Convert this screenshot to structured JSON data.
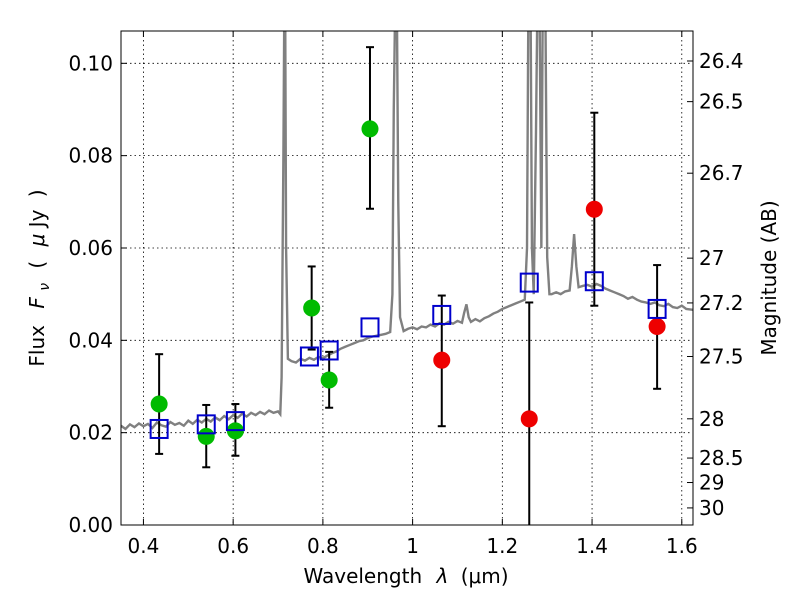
{
  "chart_data": {
    "type": "scatter",
    "title": "",
    "xlabel": "Wavelength  λ (μm)",
    "ylabel": "Flux  F_ν  ( μJy )",
    "ylabel_parts": {
      "prefix": "Flux",
      "symbol": "F",
      "subscript": "ν",
      "open": "(",
      "mu": "μ",
      "unit": "Jy",
      "close": ")"
    },
    "xlabel_parts": {
      "prefix": "Wavelength",
      "symbol": "λ",
      "unit": "(μm)"
    },
    "y2label": "Magnitude (AB)",
    "xlim": [
      0.35,
      1.625
    ],
    "ylim": [
      0.0,
      0.107
    ],
    "grid": true,
    "xticks": [
      0.4,
      0.6,
      0.8,
      1.0,
      1.2,
      1.4,
      1.6
    ],
    "xtick_labels": [
      "0.4",
      "0.6",
      "0.8",
      "1",
      "1.2",
      "1.4",
      "1.6"
    ],
    "yticks": [
      0.0,
      0.02,
      0.04,
      0.06,
      0.08,
      0.1
    ],
    "ytick_labels": [
      "0.00",
      "0.02",
      "0.04",
      "0.06",
      "0.08",
      "0.10"
    ],
    "y2ticks": [
      {
        "label": "26.4",
        "flux": 0.1005
      },
      {
        "label": "26.5",
        "flux": 0.0917
      },
      {
        "label": "26.7",
        "flux": 0.0762
      },
      {
        "label": "27",
        "flux": 0.0578
      },
      {
        "label": "27.2",
        "flux": 0.0481
      },
      {
        "label": "27.5",
        "flux": 0.0365
      },
      {
        "label": "28",
        "flux": 0.023
      },
      {
        "label": "28.5",
        "flux": 0.0145
      },
      {
        "label": "29",
        "flux": 0.0092
      },
      {
        "label": "30",
        "flux": 0.0037
      }
    ],
    "series": [
      {
        "name": "template spectrum",
        "type": "line",
        "color": "#808080",
        "points": [
          [
            0.35,
            0.0215
          ],
          [
            0.36,
            0.0208
          ],
          [
            0.37,
            0.0218
          ],
          [
            0.38,
            0.0212
          ],
          [
            0.39,
            0.022
          ],
          [
            0.4,
            0.0214
          ],
          [
            0.41,
            0.0219
          ],
          [
            0.42,
            0.021
          ],
          [
            0.43,
            0.0222
          ],
          [
            0.44,
            0.0216
          ],
          [
            0.45,
            0.0213
          ],
          [
            0.46,
            0.0223
          ],
          [
            0.47,
            0.0217
          ],
          [
            0.48,
            0.0221
          ],
          [
            0.49,
            0.0215
          ],
          [
            0.5,
            0.0226
          ],
          [
            0.51,
            0.0219
          ],
          [
            0.52,
            0.0228
          ],
          [
            0.53,
            0.0222
          ],
          [
            0.54,
            0.023
          ],
          [
            0.55,
            0.0224
          ],
          [
            0.56,
            0.0233
          ],
          [
            0.57,
            0.0227
          ],
          [
            0.58,
            0.0236
          ],
          [
            0.59,
            0.0229
          ],
          [
            0.6,
            0.0238
          ],
          [
            0.61,
            0.0232
          ],
          [
            0.62,
            0.0241
          ],
          [
            0.63,
            0.0235
          ],
          [
            0.64,
            0.0243
          ],
          [
            0.65,
            0.0238
          ],
          [
            0.66,
            0.0245
          ],
          [
            0.67,
            0.024
          ],
          [
            0.68,
            0.0248
          ],
          [
            0.69,
            0.0243
          ],
          [
            0.7,
            0.0246
          ],
          [
            0.705,
            0.024
          ],
          [
            0.708,
            0.032
          ],
          [
            0.712,
            0.08
          ],
          [
            0.714,
            0.112
          ],
          [
            0.716,
            0.112
          ],
          [
            0.718,
            0.06
          ],
          [
            0.722,
            0.036
          ],
          [
            0.73,
            0.0355
          ],
          [
            0.74,
            0.0352
          ],
          [
            0.75,
            0.036
          ],
          [
            0.76,
            0.0356
          ],
          [
            0.77,
            0.0362
          ],
          [
            0.78,
            0.0358
          ],
          [
            0.79,
            0.0364
          ],
          [
            0.8,
            0.0361
          ],
          [
            0.81,
            0.0367
          ],
          [
            0.82,
            0.0372
          ],
          [
            0.83,
            0.0376
          ],
          [
            0.84,
            0.0382
          ],
          [
            0.85,
            0.0386
          ],
          [
            0.86,
            0.039
          ],
          [
            0.87,
            0.0394
          ],
          [
            0.88,
            0.0398
          ],
          [
            0.89,
            0.04
          ],
          [
            0.9,
            0.0405
          ],
          [
            0.91,
            0.0408
          ],
          [
            0.92,
            0.041
          ],
          [
            0.93,
            0.0412
          ],
          [
            0.94,
            0.0414
          ],
          [
            0.95,
            0.0418
          ],
          [
            0.955,
            0.05
          ],
          [
            0.958,
            0.09
          ],
          [
            0.961,
            0.112
          ],
          [
            0.965,
            0.112
          ],
          [
            0.968,
            0.07
          ],
          [
            0.972,
            0.045
          ],
          [
            0.98,
            0.042
          ],
          [
            0.99,
            0.0425
          ],
          [
            1.0,
            0.0428
          ],
          [
            1.01,
            0.0424
          ],
          [
            1.02,
            0.043
          ],
          [
            1.03,
            0.0428
          ],
          [
            1.04,
            0.0434
          ],
          [
            1.05,
            0.043
          ],
          [
            1.06,
            0.0437
          ],
          [
            1.07,
            0.0434
          ],
          [
            1.08,
            0.044
          ],
          [
            1.09,
            0.0436
          ],
          [
            1.1,
            0.0442
          ],
          [
            1.11,
            0.0438
          ],
          [
            1.115,
            0.046
          ],
          [
            1.12,
            0.0478
          ],
          [
            1.125,
            0.045
          ],
          [
            1.13,
            0.044
          ],
          [
            1.14,
            0.0446
          ],
          [
            1.15,
            0.0441
          ],
          [
            1.16,
            0.0448
          ],
          [
            1.17,
            0.0452
          ],
          [
            1.18,
            0.0458
          ],
          [
            1.19,
            0.0462
          ],
          [
            1.2,
            0.0468
          ],
          [
            1.21,
            0.0472
          ],
          [
            1.22,
            0.0476
          ],
          [
            1.23,
            0.048
          ],
          [
            1.24,
            0.0484
          ],
          [
            1.25,
            0.0488
          ],
          [
            1.255,
            0.06
          ],
          [
            1.258,
            0.112
          ],
          [
            1.263,
            0.112
          ],
          [
            1.266,
            0.06
          ],
          [
            1.27,
            0.05
          ],
          [
            1.275,
            0.085
          ],
          [
            1.278,
            0.112
          ],
          [
            1.283,
            0.112
          ],
          [
            1.287,
            0.06
          ],
          [
            1.29,
            0.112
          ],
          [
            1.296,
            0.112
          ],
          [
            1.3,
            0.058
          ],
          [
            1.305,
            0.05
          ],
          [
            1.31,
            0.05
          ],
          [
            1.32,
            0.0504
          ],
          [
            1.33,
            0.05
          ],
          [
            1.34,
            0.0506
          ],
          [
            1.35,
            0.0508
          ],
          [
            1.355,
            0.056
          ],
          [
            1.36,
            0.063
          ],
          [
            1.365,
            0.056
          ],
          [
            1.37,
            0.0515
          ],
          [
            1.38,
            0.0518
          ],
          [
            1.39,
            0.052
          ],
          [
            1.4,
            0.0516
          ],
          [
            1.41,
            0.0522
          ],
          [
            1.42,
            0.0518
          ],
          [
            1.43,
            0.0512
          ],
          [
            1.44,
            0.0508
          ],
          [
            1.45,
            0.0504
          ],
          [
            1.46,
            0.05
          ],
          [
            1.47,
            0.0496
          ],
          [
            1.48,
            0.049
          ],
          [
            1.49,
            0.0494
          ],
          [
            1.5,
            0.0488
          ],
          [
            1.51,
            0.0484
          ],
          [
            1.52,
            0.0482
          ],
          [
            1.53,
            0.0479
          ],
          [
            1.54,
            0.0482
          ],
          [
            1.55,
            0.0476
          ],
          [
            1.56,
            0.0474
          ],
          [
            1.57,
            0.0479
          ],
          [
            1.58,
            0.0472
          ],
          [
            1.59,
            0.047
          ],
          [
            1.6,
            0.0475
          ],
          [
            1.61,
            0.0468
          ],
          [
            1.625,
            0.0466
          ]
        ]
      },
      {
        "name": "detections (green)",
        "type": "scatter",
        "marker": "circle",
        "color": "#00bb00",
        "points": [
          {
            "x": 0.435,
            "y": 0.0262,
            "yerr": [
              0.0154,
              0.037
            ]
          },
          {
            "x": 0.54,
            "y": 0.0192,
            "yerr": [
              0.0125,
              0.026
            ]
          },
          {
            "x": 0.605,
            "y": 0.0204,
            "yerr": [
              0.015,
              0.0262
            ]
          },
          {
            "x": 0.775,
            "y": 0.047,
            "yerr": null
          },
          {
            "x": 0.814,
            "y": 0.0314,
            "yerr": [
              0.0254,
              0.0375
            ]
          },
          {
            "x": 0.905,
            "y": 0.0858,
            "yerr": [
              0.0685,
              0.1035
            ]
          }
        ]
      },
      {
        "name": "error bar (0.775)",
        "type": "errorbar-only",
        "color": "#000000",
        "points": [
          {
            "x": 0.775,
            "y": 0.047,
            "yerr": [
              0.038,
              0.056
            ]
          }
        ]
      },
      {
        "name": "detections (red)",
        "type": "scatter",
        "marker": "circle",
        "color": "#ee0000",
        "points": [
          {
            "x": 1.065,
            "y": 0.0357,
            "yerr": [
              0.0214,
              0.0497
            ]
          },
          {
            "x": 1.26,
            "y": 0.023,
            "yerr": [
              0.0,
              0.0482
            ]
          },
          {
            "x": 1.405,
            "y": 0.0684,
            "yerr": [
              0.0475,
              0.0893
            ]
          },
          {
            "x": 1.545,
            "y": 0.043,
            "yerr": [
              0.0295,
              0.0563
            ]
          }
        ]
      },
      {
        "name": "model photometry",
        "type": "scatter",
        "marker": "square-open",
        "color": "#0000cc",
        "points": [
          {
            "x": 0.435,
            "y": 0.0208
          },
          {
            "x": 0.54,
            "y": 0.0218
          },
          {
            "x": 0.605,
            "y": 0.0225
          },
          {
            "x": 0.77,
            "y": 0.0365
          },
          {
            "x": 0.814,
            "y": 0.0378
          },
          {
            "x": 0.905,
            "y": 0.0428
          },
          {
            "x": 1.065,
            "y": 0.0455
          },
          {
            "x": 1.26,
            "y": 0.0525
          },
          {
            "x": 1.405,
            "y": 0.0528
          },
          {
            "x": 1.545,
            "y": 0.0468
          }
        ]
      }
    ]
  }
}
